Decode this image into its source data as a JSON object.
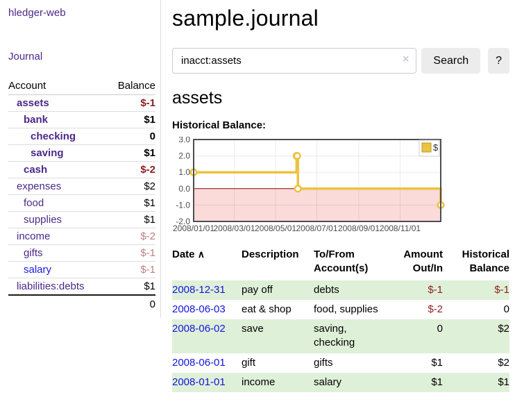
{
  "sidebar": {
    "app_title": "hledger-web",
    "nav": {
      "journal_label": "Journal"
    },
    "table": {
      "account_header": "Account",
      "balance_header": "Balance"
    },
    "accounts": [
      {
        "name": "assets",
        "depth": 1,
        "bold": true,
        "link": "purple",
        "balance": "$-1",
        "balance_style": "neg"
      },
      {
        "name": "bank",
        "depth": 2,
        "bold": true,
        "link": "purple",
        "balance": "$1",
        "balance_style": "plain"
      },
      {
        "name": "checking",
        "depth": 3,
        "bold": true,
        "link": "purple",
        "balance": "0",
        "balance_style": "plain"
      },
      {
        "name": "saving",
        "depth": 3,
        "bold": true,
        "link": "purple",
        "balance": "$1",
        "balance_style": "plain"
      },
      {
        "name": "cash",
        "depth": 2,
        "bold": true,
        "link": "purple",
        "balance": "$-2",
        "balance_style": "neg"
      },
      {
        "name": "expenses",
        "depth": 1,
        "bold": false,
        "link": "purple",
        "balance": "$2",
        "balance_style": "plain"
      },
      {
        "name": "food",
        "depth": 2,
        "bold": false,
        "link": "purple",
        "balance": "$1",
        "balance_style": "plain"
      },
      {
        "name": "supplies",
        "depth": 2,
        "bold": false,
        "link": "purple",
        "balance": "$1",
        "balance_style": "plain"
      },
      {
        "name": "income",
        "depth": 1,
        "bold": false,
        "link": "purple",
        "balance": "$-2",
        "balance_style": "neg-soft"
      },
      {
        "name": "gifts",
        "depth": 2,
        "bold": false,
        "link": "purple",
        "balance": "$-1",
        "balance_style": "neg-soft"
      },
      {
        "name": "salary",
        "depth": 2,
        "bold": false,
        "link": "blue",
        "balance": "$-1",
        "balance_style": "neg-soft"
      },
      {
        "name": "liabilities:debts",
        "depth": 1,
        "bold": false,
        "link": "purple",
        "balance": "$1",
        "balance_style": "plain"
      }
    ],
    "total": "0"
  },
  "main": {
    "title": "sample.journal",
    "search": {
      "value": "inacct:assets",
      "clear_icon": "×",
      "button_label": "Search",
      "help_label": "?"
    },
    "account_heading": "assets",
    "chart_label": "Historical Balance:",
    "register_table": {
      "headers": {
        "date": "Date",
        "sort_icon": "∧",
        "description": "Description",
        "tofrom": "To/From\nAccount(s)",
        "amount": "Amount\nOut/In",
        "balance": "Historical\nBalance"
      },
      "rows": [
        {
          "date": "2008-12-31",
          "description": "pay off",
          "accounts": "debts",
          "amount": "$-1",
          "amount_negative": true,
          "balance": "$-1",
          "balance_negative": true
        },
        {
          "date": "2008-06-03",
          "description": "eat & shop",
          "accounts": "food, supplies",
          "amount": "$-2",
          "amount_negative": true,
          "balance": "0",
          "balance_negative": false
        },
        {
          "date": "2008-06-02",
          "description": "save",
          "accounts": "saving,\nchecking",
          "amount": "0",
          "amount_negative": false,
          "balance": "$2",
          "balance_negative": false
        },
        {
          "date": "2008-06-01",
          "description": "gift",
          "accounts": "gifts",
          "amount": "$1",
          "amount_negative": false,
          "balance": "$2",
          "balance_negative": false
        },
        {
          "date": "2008-01-01",
          "description": "income",
          "accounts": "salary",
          "amount": "$1",
          "amount_negative": false,
          "balance": "$1",
          "balance_negative": false
        }
      ]
    }
  },
  "chart_data": {
    "type": "line",
    "mode": "steps",
    "title": "Historical Balance",
    "x_start": "2008-01-01",
    "x_end": "2008-12-31",
    "ylim": [
      -2,
      3
    ],
    "grid": true,
    "series": [
      {
        "name": "$",
        "color": "#edc240",
        "marker_border": "#b89b2e",
        "points": [
          {
            "date": "2008-01-01",
            "value": 1
          },
          {
            "date": "2008-06-01",
            "value": 2
          },
          {
            "date": "2008-06-02",
            "value": 2
          },
          {
            "date": "2008-06-03",
            "value": 0
          },
          {
            "date": "2008-12-31",
            "value": -1
          }
        ]
      }
    ],
    "y_ticks": [
      {
        "label": "3.0",
        "value": 3
      },
      {
        "label": "2.0",
        "value": 2
      },
      {
        "label": "1.0",
        "value": 1
      },
      {
        "label": "0.0",
        "value": 0
      },
      {
        "label": "-1.0",
        "value": -1
      },
      {
        "label": "-2.0",
        "value": -2
      }
    ],
    "x_ticks": [
      {
        "label": "2008/01/01",
        "date": "2008-01-01"
      },
      {
        "label": "2008/03/01",
        "date": "2008-03-01"
      },
      {
        "label": "2008/05/01",
        "date": "2008-05-01"
      },
      {
        "label": "2008/07/01",
        "date": "2008-07-01"
      },
      {
        "label": "2008/09/01",
        "date": "2008-09-01"
      },
      {
        "label": "2008/11/01",
        "date": "2008-11-01"
      }
    ],
    "legend": {
      "position": "top-right",
      "label": "$"
    },
    "negative_region_color": "#fbdada",
    "zero_line_color": "#8b0000",
    "border_color": "#4d4d4d",
    "tick_color": "#4d4d4d",
    "gridline_color": "rgba(0,0,0,0.08)"
  }
}
